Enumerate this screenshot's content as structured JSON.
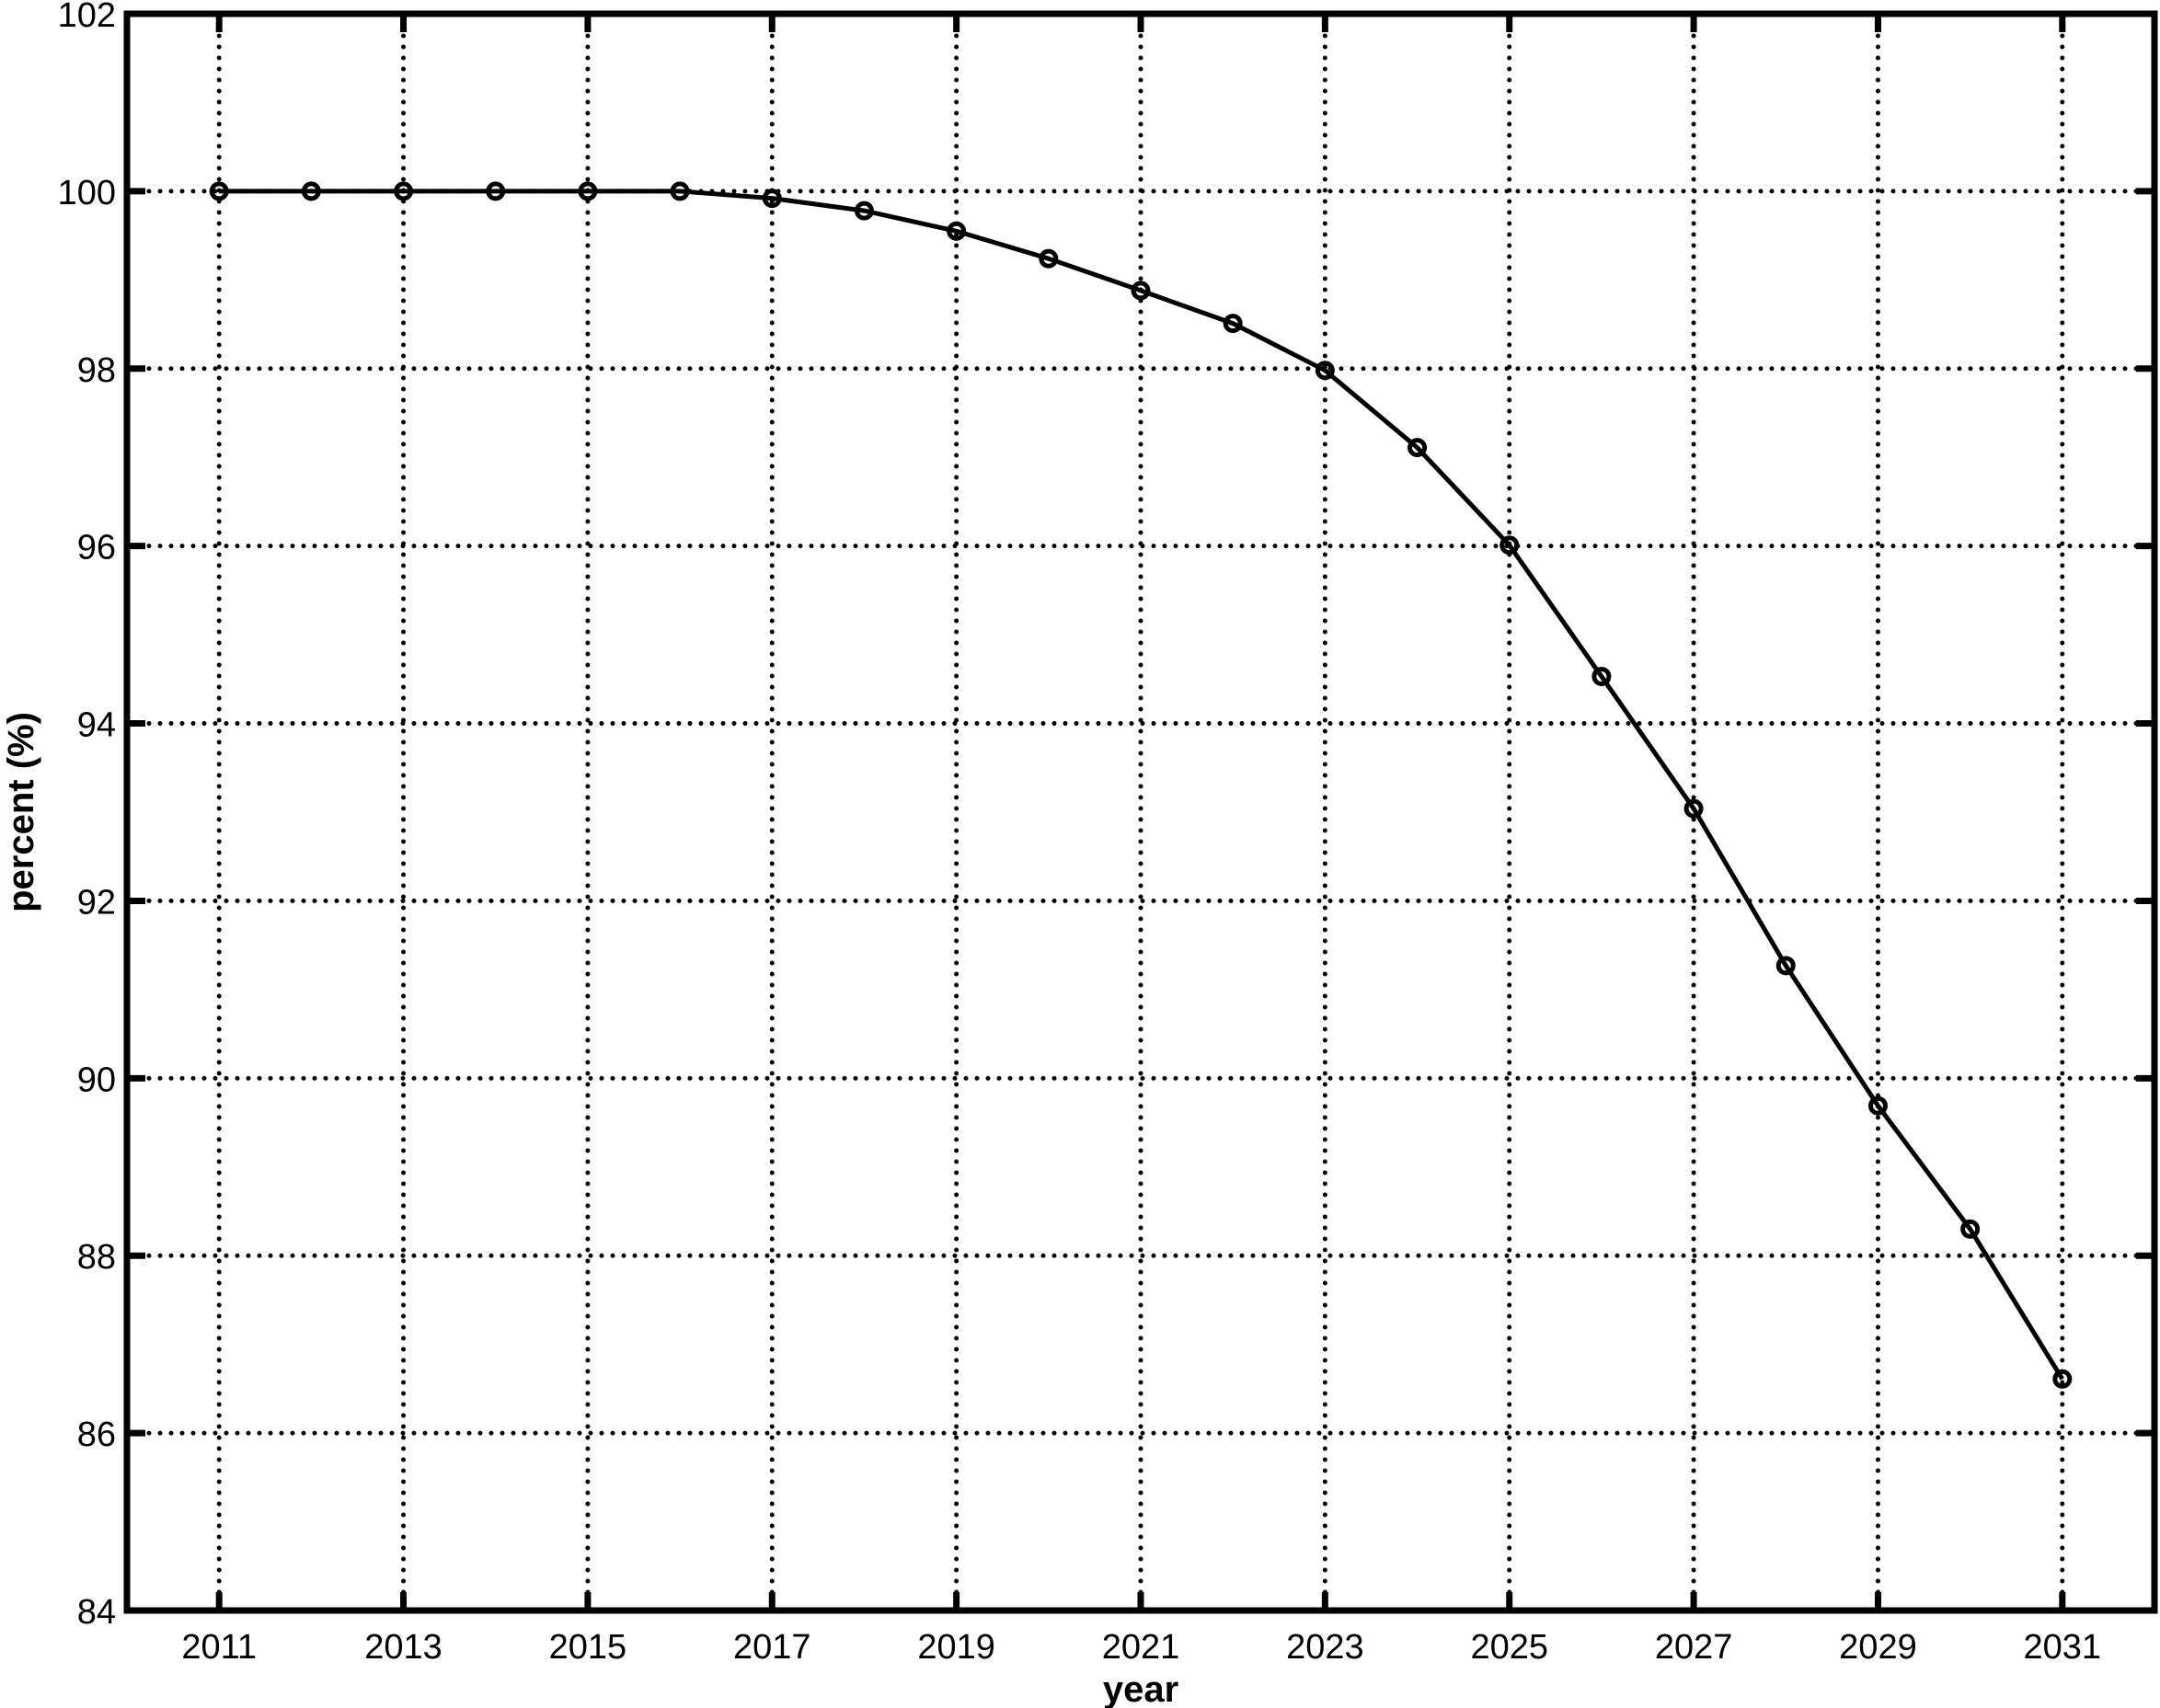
{
  "chart_data": {
    "type": "line",
    "title": "",
    "xlabel": "year",
    "ylabel": "percent (%)",
    "xlim": [
      2010,
      2032
    ],
    "ylim": [
      84,
      102
    ],
    "xticks": [
      2011,
      2013,
      2015,
      2017,
      2019,
      2021,
      2023,
      2025,
      2027,
      2029,
      2031
    ],
    "yticks": [
      84,
      86,
      88,
      90,
      92,
      94,
      96,
      98,
      100,
      102
    ],
    "grid": true,
    "marker": "circle",
    "color": "#000000",
    "x": [
      2011,
      2012,
      2013,
      2014,
      2015,
      2016,
      2017,
      2018,
      2019,
      2020,
      2021,
      2022,
      2023,
      2024,
      2025,
      2026,
      2027,
      2028,
      2029,
      2030,
      2031
    ],
    "y": [
      100,
      100,
      100,
      100,
      100,
      100,
      99.92,
      99.78,
      99.55,
      99.24,
      98.88,
      98.51,
      97.98,
      97.11,
      96.01,
      94.53,
      93.04,
      91.27,
      89.69,
      88.3,
      86.61
    ]
  }
}
